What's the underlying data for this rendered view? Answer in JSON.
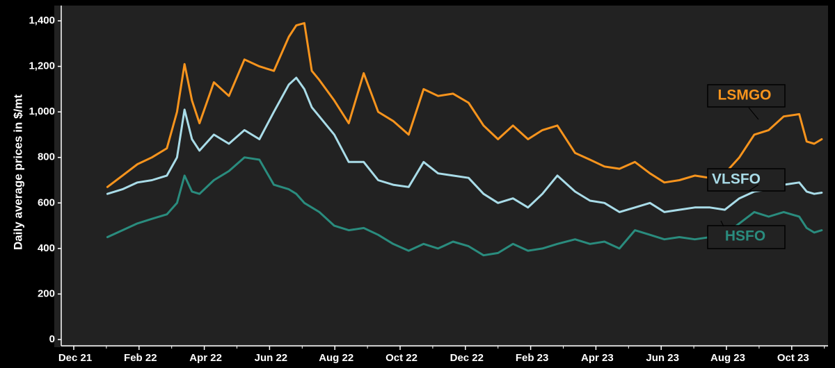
{
  "chart_data": {
    "type": "line",
    "ylabel": "Daily average prices in $/mt",
    "ylim": [
      0,
      1400
    ],
    "yticks": [
      0,
      200,
      400,
      600,
      800,
      1000,
      1200,
      1400
    ],
    "ytick_labels": [
      "0",
      "200",
      "400",
      "600",
      "800",
      "1,000",
      "1,200",
      "1,400"
    ],
    "xticks": [
      "Dec 21",
      "Feb 22",
      "Apr 22",
      "Jun 22",
      "Aug 22",
      "Oct 22",
      "Dec 22",
      "Feb 23",
      "Apr 23",
      "Jun 23",
      "Aug 23",
      "Oct 23"
    ],
    "x": [
      "Jan 02",
      "Jan 16",
      "Jan 30",
      "Feb 13",
      "Feb 27",
      "Mar 06",
      "Mar 13",
      "Mar 20",
      "Mar 27",
      "Apr 10",
      "Apr 24",
      "May 08",
      "May 22",
      "Jun 05",
      "Jun 19",
      "Jun 26",
      "Jul 03",
      "Jul 10",
      "Jul 17",
      "Jul 31",
      "Aug 14",
      "Aug 28",
      "Sep 11",
      "Sep 25",
      "Oct 09",
      "Oct 23",
      "Nov 06",
      "Nov 20",
      "Dec 04",
      "Dec 18",
      "Jan 01",
      "Jan 15",
      "Jan 29",
      "Feb 12",
      "Feb 26",
      "Mar 12",
      "Mar 26",
      "Apr 09",
      "Apr 23",
      "May 07",
      "May 21",
      "Jun 04",
      "Jun 18",
      "Jul 02",
      "Jul 16",
      "Jul 30",
      "Aug 13",
      "Aug 27",
      "Sep 10",
      "Sep 24",
      "Oct 08",
      "Oct 15",
      "Oct 22",
      "Oct 29"
    ],
    "series": [
      {
        "name": "LSMGO",
        "color": "#F7941D",
        "values": [
          670,
          720,
          770,
          800,
          840,
          1000,
          1210,
          1050,
          950,
          1130,
          1070,
          1230,
          1200,
          1180,
          1330,
          1380,
          1390,
          1180,
          1140,
          1050,
          950,
          1170,
          1000,
          960,
          900,
          1100,
          1070,
          1080,
          1040,
          940,
          880,
          940,
          880,
          920,
          940,
          820,
          790,
          760,
          750,
          780,
          730,
          690,
          700,
          720,
          710,
          730,
          800,
          900,
          920,
          980,
          990,
          870,
          860,
          880
        ]
      },
      {
        "name": "VLSFO",
        "color": "#A9DCE8",
        "values": [
          640,
          660,
          690,
          700,
          720,
          800,
          1010,
          880,
          830,
          900,
          860,
          920,
          880,
          1000,
          1120,
          1150,
          1100,
          1020,
          980,
          900,
          780,
          780,
          700,
          680,
          670,
          780,
          730,
          720,
          710,
          640,
          600,
          620,
          580,
          640,
          720,
          650,
          610,
          600,
          560,
          580,
          600,
          560,
          570,
          580,
          580,
          570,
          620,
          650,
          660,
          680,
          690,
          650,
          640,
          645
        ]
      },
      {
        "name": "HSFO",
        "color": "#2A8C7E",
        "values": [
          450,
          480,
          510,
          530,
          550,
          600,
          720,
          650,
          640,
          700,
          740,
          800,
          790,
          680,
          660,
          640,
          600,
          580,
          560,
          500,
          480,
          490,
          460,
          420,
          390,
          420,
          400,
          430,
          410,
          370,
          380,
          420,
          390,
          400,
          420,
          440,
          420,
          430,
          400,
          480,
          460,
          440,
          450,
          440,
          450,
          460,
          510,
          560,
          540,
          560,
          540,
          490,
          470,
          480
        ]
      }
    ],
    "legend": [
      {
        "label": "LSMGO",
        "color": "#F7941D"
      },
      {
        "label": "VLSFO",
        "color": "#A9DCE8"
      },
      {
        "label": "HSFO",
        "color": "#2A8C7E"
      }
    ],
    "grid": false,
    "background": "#222222"
  }
}
